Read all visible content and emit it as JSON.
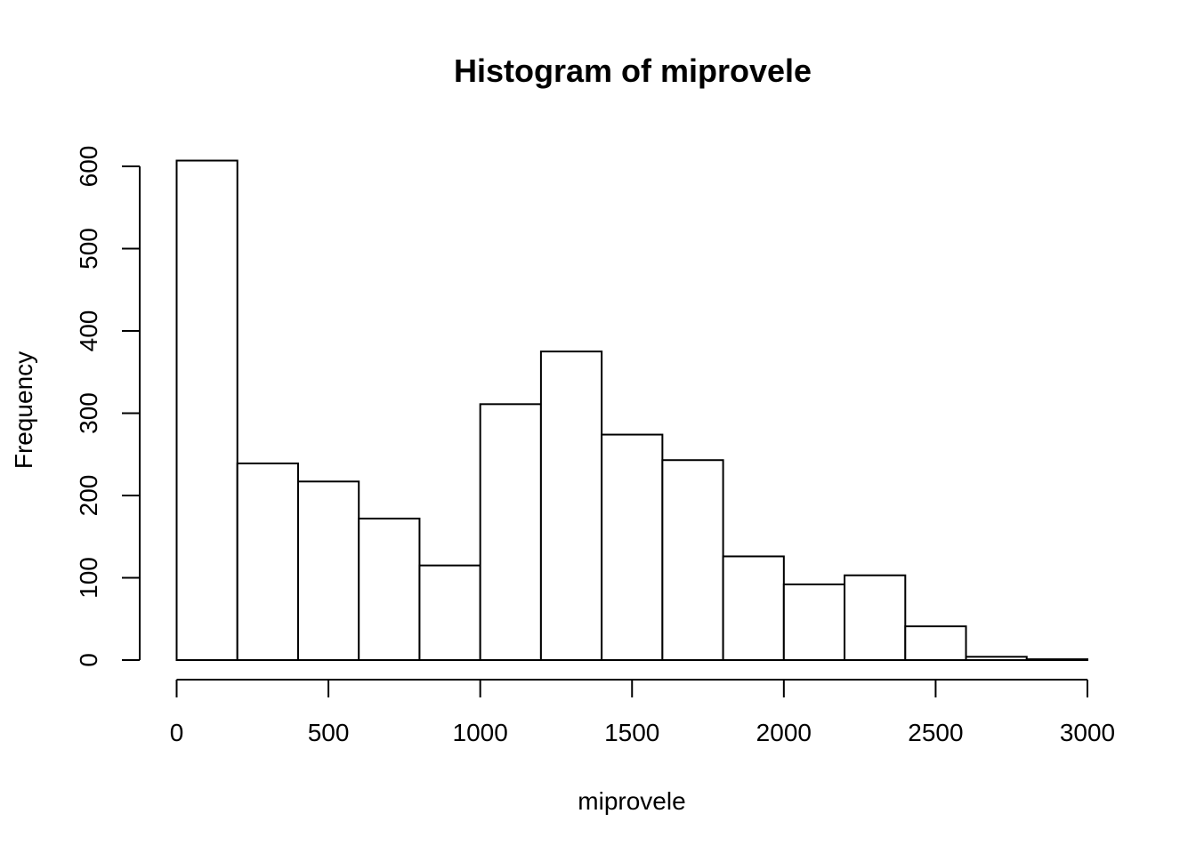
{
  "chart_data": {
    "type": "bar",
    "title": "Histogram of miprovele",
    "xlabel": "miprovele",
    "ylabel": "Frequency",
    "bins": [
      {
        "from": 0,
        "to": 200,
        "count": 607
      },
      {
        "from": 200,
        "to": 400,
        "count": 239
      },
      {
        "from": 400,
        "to": 600,
        "count": 217
      },
      {
        "from": 600,
        "to": 800,
        "count": 172
      },
      {
        "from": 800,
        "to": 1000,
        "count": 115
      },
      {
        "from": 1000,
        "to": 1200,
        "count": 311
      },
      {
        "from": 1200,
        "to": 1400,
        "count": 375
      },
      {
        "from": 1400,
        "to": 1600,
        "count": 274
      },
      {
        "from": 1600,
        "to": 1800,
        "count": 243
      },
      {
        "from": 1800,
        "to": 2000,
        "count": 126
      },
      {
        "from": 2000,
        "to": 2200,
        "count": 92
      },
      {
        "from": 2200,
        "to": 2400,
        "count": 103
      },
      {
        "from": 2400,
        "to": 2600,
        "count": 41
      },
      {
        "from": 2600,
        "to": 2800,
        "count": 4
      },
      {
        "from": 2800,
        "to": 3000,
        "count": 1
      }
    ],
    "xticks": [
      0,
      500,
      1000,
      1500,
      2000,
      2500,
      3000
    ],
    "xtick_labels": [
      "0",
      "500",
      "1000",
      "1500",
      "2000",
      "2500",
      "3000"
    ],
    "yticks": [
      0,
      100,
      200,
      300,
      400,
      500,
      600
    ],
    "ytick_labels": [
      "0",
      "100",
      "200",
      "300",
      "400",
      "500",
      "600"
    ],
    "xlim": [
      0,
      3000
    ],
    "ylim": [
      0,
      600
    ],
    "grid": false,
    "legend": "none"
  }
}
